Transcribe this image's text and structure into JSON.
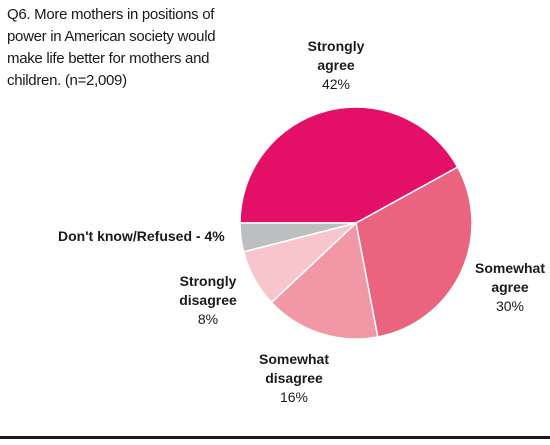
{
  "chart_data": {
    "type": "pie",
    "title": "Q6. More mothers in positions of power in American society would make life better for mothers and children. (n=2,009)",
    "slices": [
      {
        "label": "Strongly agree",
        "label_lines": [
          "Strongly",
          "agree"
        ],
        "value": 42,
        "display": "42%",
        "color": "#e40f67"
      },
      {
        "label": "Somewhat agree",
        "label_lines": [
          "Somewhat",
          "agree"
        ],
        "value": 30,
        "display": "30%",
        "color": "#ea6480"
      },
      {
        "label": "Somewhat disagree",
        "label_lines": [
          "Somewhat",
          "disagree"
        ],
        "value": 16,
        "display": "16%",
        "color": "#f197a5"
      },
      {
        "label": "Strongly disagree",
        "label_lines": [
          "Strongly",
          "disagree"
        ],
        "value": 8,
        "display": "8%",
        "color": "#f7c6cc"
      },
      {
        "label": "Don't know/Refused",
        "label_inline": "Don't know/Refused - 4%",
        "value": 4,
        "display": "4%",
        "color": "#bcbec0"
      }
    ]
  }
}
